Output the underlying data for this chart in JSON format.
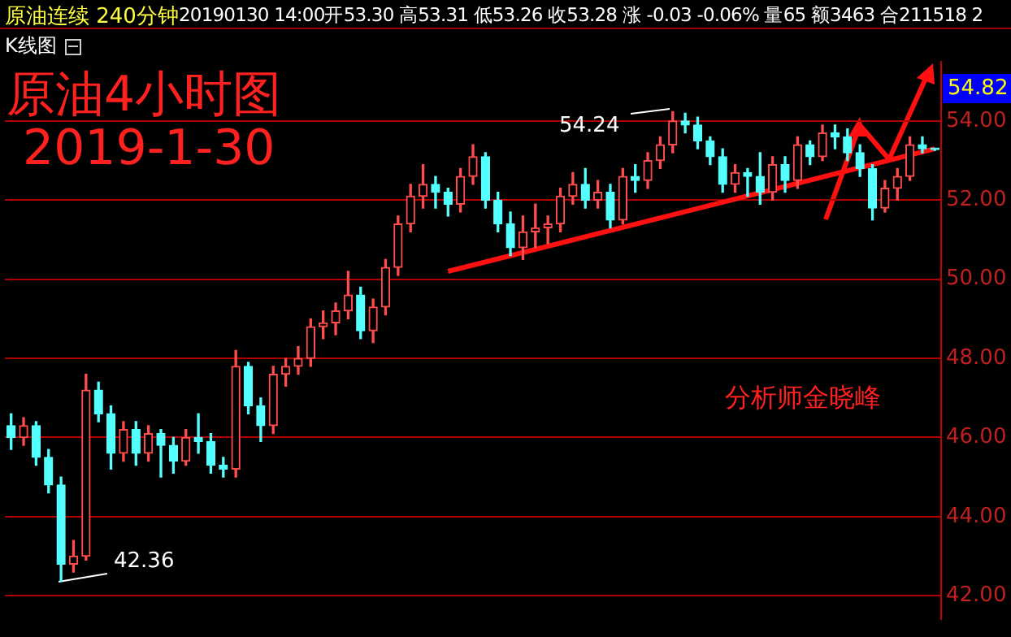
{
  "chart_data": {
    "type": "candlestick",
    "title": "原油连续 240分钟",
    "subtitle": "20190130 14:00开53.30 高53.31 低53.26 收53.28 涨 -0.03 -0.06% 量65 额3463 合211518 2",
    "categories": [
      null,
      null,
      null,
      null,
      null,
      null,
      null,
      null,
      null,
      null,
      null,
      null,
      null,
      null,
      null,
      null,
      null,
      null,
      null,
      null,
      null,
      null,
      null,
      null,
      null,
      null,
      null,
      null,
      null,
      null,
      null,
      null,
      null,
      null,
      null,
      null,
      null,
      null,
      null,
      null,
      null,
      null,
      null,
      null,
      null,
      null,
      null,
      null,
      null,
      null,
      null,
      null,
      null,
      null,
      null,
      null,
      null,
      null,
      null,
      null,
      null,
      null,
      null,
      null,
      null,
      null,
      null,
      null,
      null,
      null,
      null,
      null,
      null,
      null,
      null
    ],
    "ohlc": [
      [
        46.3,
        46.6,
        45.7,
        46.0
      ],
      [
        46.0,
        46.5,
        45.8,
        46.3
      ],
      [
        46.3,
        46.4,
        45.3,
        45.5
      ],
      [
        45.5,
        45.7,
        44.6,
        44.8
      ],
      [
        44.8,
        45.0,
        42.36,
        42.8
      ],
      [
        42.8,
        43.4,
        42.6,
        43.0
      ],
      [
        43.0,
        47.6,
        42.9,
        47.2
      ],
      [
        47.2,
        47.4,
        46.4,
        46.6
      ],
      [
        46.6,
        46.8,
        45.2,
        45.6
      ],
      [
        45.6,
        46.4,
        45.4,
        46.2
      ],
      [
        46.2,
        46.4,
        45.3,
        45.6
      ],
      [
        45.6,
        46.3,
        45.4,
        46.1
      ],
      [
        46.1,
        46.2,
        45.0,
        45.8
      ],
      [
        45.8,
        46.0,
        45.1,
        45.4
      ],
      [
        45.4,
        46.2,
        45.3,
        46.0
      ],
      [
        46.0,
        46.6,
        45.6,
        45.9
      ],
      [
        45.9,
        46.1,
        45.1,
        45.3
      ],
      [
        45.3,
        45.5,
        45.0,
        45.2
      ],
      [
        45.2,
        48.2,
        45.0,
        47.8
      ],
      [
        47.8,
        47.9,
        46.6,
        46.8
      ],
      [
        46.8,
        47.0,
        45.9,
        46.3
      ],
      [
        46.3,
        47.8,
        46.1,
        47.6
      ],
      [
        47.6,
        48.0,
        47.3,
        47.8
      ],
      [
        47.8,
        48.3,
        47.6,
        48.0
      ],
      [
        48.0,
        49.0,
        47.8,
        48.8
      ],
      [
        48.8,
        49.2,
        48.5,
        48.9
      ],
      [
        48.9,
        49.4,
        48.6,
        49.2
      ],
      [
        49.2,
        50.2,
        49.0,
        49.6
      ],
      [
        49.6,
        49.8,
        48.5,
        48.7
      ],
      [
        48.7,
        49.5,
        48.4,
        49.3
      ],
      [
        49.3,
        50.5,
        49.1,
        50.3
      ],
      [
        50.3,
        51.6,
        50.1,
        51.4
      ],
      [
        51.4,
        52.4,
        51.2,
        52.1
      ],
      [
        52.1,
        52.9,
        51.8,
        52.4
      ],
      [
        52.4,
        52.6,
        51.8,
        52.2
      ],
      [
        52.2,
        52.3,
        51.6,
        51.9
      ],
      [
        51.9,
        52.8,
        51.7,
        52.6
      ],
      [
        52.6,
        53.4,
        52.4,
        53.1
      ],
      [
        53.1,
        53.2,
        51.8,
        52.0
      ],
      [
        52.0,
        52.2,
        51.2,
        51.4
      ],
      [
        51.4,
        51.7,
        50.6,
        50.8
      ],
      [
        50.8,
        51.6,
        50.5,
        51.2
      ],
      [
        51.2,
        51.9,
        50.8,
        51.3
      ],
      [
        51.3,
        51.6,
        50.9,
        51.4
      ],
      [
        51.4,
        52.3,
        51.2,
        52.1
      ],
      [
        52.1,
        52.7,
        51.9,
        52.4
      ],
      [
        52.4,
        52.8,
        51.8,
        52.0
      ],
      [
        52.0,
        52.5,
        51.8,
        52.2
      ],
      [
        52.2,
        52.4,
        51.3,
        51.5
      ],
      [
        51.5,
        52.8,
        51.4,
        52.6
      ],
      [
        52.6,
        52.9,
        52.2,
        52.5
      ],
      [
        52.5,
        53.2,
        52.3,
        53.0
      ],
      [
        53.0,
        53.6,
        52.8,
        53.4
      ],
      [
        53.4,
        54.24,
        53.2,
        54.0
      ],
      [
        54.0,
        54.2,
        53.7,
        53.9
      ],
      [
        53.9,
        54.1,
        53.3,
        53.5
      ],
      [
        53.5,
        53.6,
        52.9,
        53.1
      ],
      [
        53.1,
        53.3,
        52.2,
        52.4
      ],
      [
        52.4,
        52.9,
        52.2,
        52.7
      ],
      [
        52.7,
        52.8,
        52.1,
        52.6
      ],
      [
        52.6,
        53.2,
        51.9,
        52.2
      ],
      [
        52.2,
        53.1,
        52.0,
        52.9
      ],
      [
        52.9,
        53.1,
        52.2,
        52.5
      ],
      [
        52.5,
        53.6,
        52.3,
        53.4
      ],
      [
        53.4,
        53.5,
        52.9,
        53.1
      ],
      [
        53.1,
        53.9,
        53.0,
        53.7
      ],
      [
        53.7,
        53.9,
        53.3,
        53.6
      ],
      [
        53.6,
        53.8,
        53.0,
        53.2
      ],
      [
        53.2,
        53.4,
        52.6,
        52.8
      ],
      [
        52.8,
        52.9,
        51.5,
        51.8
      ],
      [
        51.8,
        52.5,
        51.7,
        52.3
      ],
      [
        52.3,
        52.8,
        52.0,
        52.6
      ],
      [
        52.6,
        53.6,
        52.5,
        53.4
      ],
      [
        53.4,
        53.6,
        53.2,
        53.3
      ],
      [
        53.3,
        53.31,
        53.26,
        53.28
      ]
    ],
    "colors": [
      "#54ffff",
      "#ff4d4d",
      "#54ffff",
      "#54ffff",
      "#54ffff",
      "#ff4d4d",
      "#ff4d4d",
      "#54ffff",
      "#54ffff",
      "#ff4d4d",
      "#54ffff",
      "#ff4d4d",
      "#54ffff",
      "#54ffff",
      "#ff4d4d",
      "#54ffff",
      "#54ffff",
      "#54ffff",
      "#ff4d4d",
      "#54ffff",
      "#54ffff",
      "#ff4d4d",
      "#ff4d4d",
      "#ff4d4d",
      "#ff4d4d",
      "#ff4d4d",
      "#ff4d4d",
      "#ff4d4d",
      "#54ffff",
      "#ff4d4d",
      "#ff4d4d",
      "#ff4d4d",
      "#ff4d4d",
      "#ff4d4d",
      "#54ffff",
      "#54ffff",
      "#ff4d4d",
      "#ff4d4d",
      "#54ffff",
      "#54ffff",
      "#54ffff",
      "#ff4d4d",
      "#ff4d4d",
      "#ff4d4d",
      "#ff4d4d",
      "#ff4d4d",
      "#54ffff",
      "#ff4d4d",
      "#54ffff",
      "#ff4d4d",
      "#54ffff",
      "#ff4d4d",
      "#ff4d4d",
      "#ff4d4d",
      "#54ffff",
      "#54ffff",
      "#54ffff",
      "#54ffff",
      "#ff4d4d",
      "#54ffff",
      "#54ffff",
      "#ff4d4d",
      "#54ffff",
      "#ff4d4d",
      "#54ffff",
      "#ff4d4d",
      "#54ffff",
      "#54ffff",
      "#54ffff",
      "#54ffff",
      "#ff4d4d",
      "#ff4d4d",
      "#ff4d4d",
      "#54ffff",
      "#54ffff"
    ],
    "ylim": [
      41.4,
      55.5
    ],
    "yticks": [
      {
        "value": 42,
        "label": "42.00"
      },
      {
        "value": 44,
        "label": "44.00"
      },
      {
        "value": 46,
        "label": "46.00"
      },
      {
        "value": 48,
        "label": "48.00"
      },
      {
        "value": 50,
        "label": "50.00"
      },
      {
        "value": 52,
        "label": "52.00"
      },
      {
        "value": 54,
        "label": "54.00"
      }
    ],
    "grid": "y",
    "tick_labels": "y",
    "legend": false,
    "series": [
      {
        "type": "line",
        "color": "#ff1010",
        "values": [
          null,
          null,
          null,
          null,
          null,
          null,
          null,
          null,
          null,
          null,
          null,
          null,
          null,
          null,
          null,
          null,
          null,
          null,
          null,
          null,
          null,
          null,
          null,
          null,
          null,
          null,
          null,
          null,
          null,
          null,
          null,
          null,
          null,
          null,
          null,
          50.2,
          null,
          null,
          null,
          null,
          null,
          null,
          null,
          null,
          null,
          null,
          null,
          null,
          null,
          null,
          null,
          null,
          null,
          null,
          null,
          null,
          null,
          null,
          null,
          null,
          null,
          null,
          null,
          null,
          null,
          null,
          null,
          null,
          null,
          null,
          null,
          null,
          null,
          null,
          53.3
        ]
      }
    ],
    "annotations": [
      "K线图",
      "原油4小时图",
      "2019-1-30",
      "分析师金晓峰",
      "54.24",
      "42.36",
      {
        "text": "54.82",
        "y": 54.82
      }
    ]
  }
}
